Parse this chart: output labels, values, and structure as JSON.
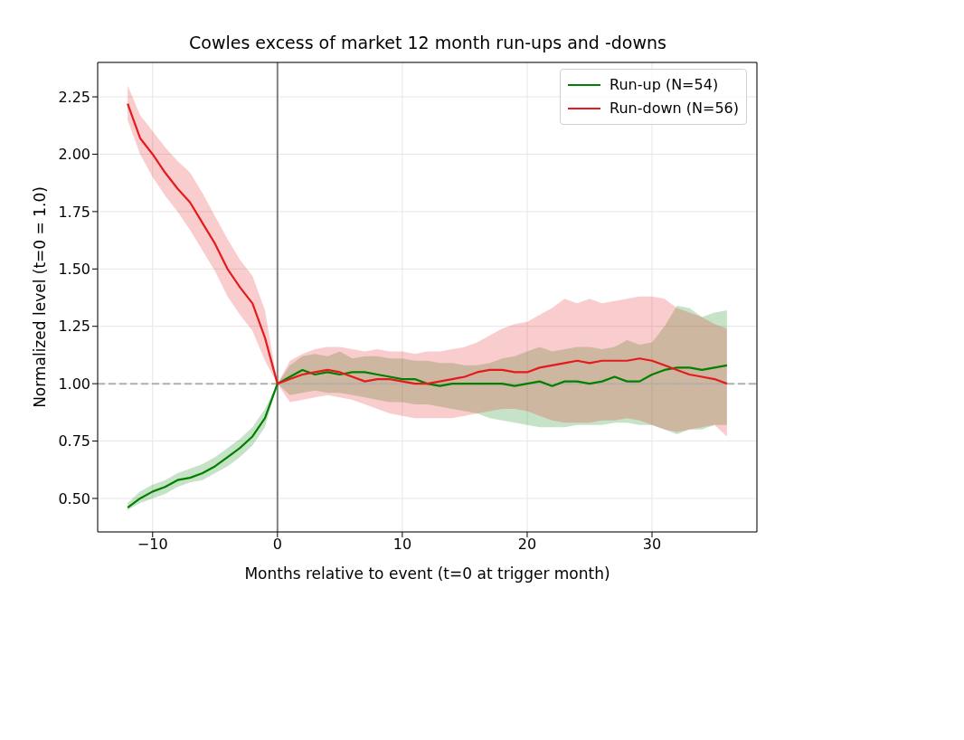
{
  "chart_data": {
    "type": "line",
    "title": "Cowles excess of market 12 month run-ups and -downs",
    "xlabel": "Months relative to event (t=0 at trigger month)",
    "ylabel": "Normalized level (t=0 = 1.0)",
    "x": [
      -12,
      -11,
      -10,
      -9,
      -8,
      -7,
      -6,
      -5,
      -4,
      -3,
      -2,
      -1,
      0,
      1,
      2,
      3,
      4,
      5,
      6,
      7,
      8,
      9,
      10,
      11,
      12,
      13,
      14,
      15,
      16,
      17,
      18,
      19,
      20,
      21,
      22,
      23,
      24,
      25,
      26,
      27,
      28,
      29,
      30,
      31,
      32,
      33,
      34,
      35,
      36
    ],
    "series": [
      {
        "name": "Run-up (N=54)",
        "color": "#008000",
        "values": [
          0.46,
          0.5,
          0.53,
          0.55,
          0.58,
          0.59,
          0.61,
          0.64,
          0.68,
          0.72,
          0.77,
          0.85,
          1.0,
          1.03,
          1.06,
          1.04,
          1.05,
          1.04,
          1.05,
          1.05,
          1.04,
          1.03,
          1.02,
          1.02,
          1.0,
          0.99,
          1.0,
          1.0,
          1.0,
          1.0,
          1.0,
          0.99,
          1.0,
          1.01,
          0.99,
          1.01,
          1.01,
          1.0,
          1.01,
          1.03,
          1.01,
          1.01,
          1.04,
          1.06,
          1.07,
          1.07,
          1.06,
          1.07,
          1.08
        ],
        "upper": [
          0.48,
          0.53,
          0.56,
          0.58,
          0.61,
          0.63,
          0.65,
          0.68,
          0.72,
          0.76,
          0.81,
          0.89,
          1.0,
          1.08,
          1.12,
          1.13,
          1.12,
          1.14,
          1.11,
          1.12,
          1.12,
          1.11,
          1.11,
          1.1,
          1.1,
          1.09,
          1.09,
          1.08,
          1.08,
          1.09,
          1.11,
          1.12,
          1.14,
          1.16,
          1.14,
          1.15,
          1.16,
          1.16,
          1.15,
          1.16,
          1.19,
          1.17,
          1.18,
          1.25,
          1.34,
          1.33,
          1.29,
          1.31,
          1.32
        ],
        "lower": [
          0.45,
          0.48,
          0.5,
          0.52,
          0.55,
          0.57,
          0.58,
          0.61,
          0.64,
          0.68,
          0.73,
          0.81,
          1.0,
          0.95,
          0.96,
          0.97,
          0.96,
          0.96,
          0.95,
          0.94,
          0.93,
          0.92,
          0.92,
          0.91,
          0.91,
          0.9,
          0.89,
          0.88,
          0.87,
          0.85,
          0.84,
          0.83,
          0.82,
          0.81,
          0.81,
          0.81,
          0.82,
          0.82,
          0.82,
          0.83,
          0.83,
          0.82,
          0.82,
          0.8,
          0.78,
          0.8,
          0.8,
          0.82,
          0.82
        ]
      },
      {
        "name": "Run-down (N=56)",
        "color": "#e41a1c",
        "values": [
          2.22,
          2.07,
          2.0,
          1.92,
          1.85,
          1.79,
          1.7,
          1.61,
          1.5,
          1.42,
          1.35,
          1.2,
          1.0,
          1.02,
          1.04,
          1.05,
          1.06,
          1.05,
          1.03,
          1.01,
          1.02,
          1.02,
          1.01,
          1.0,
          1.0,
          1.01,
          1.02,
          1.03,
          1.05,
          1.06,
          1.06,
          1.05,
          1.05,
          1.07,
          1.08,
          1.09,
          1.1,
          1.09,
          1.1,
          1.1,
          1.1,
          1.11,
          1.1,
          1.08,
          1.06,
          1.04,
          1.03,
          1.02,
          1.0
        ],
        "upper": [
          2.3,
          2.17,
          2.1,
          2.03,
          1.97,
          1.92,
          1.83,
          1.73,
          1.63,
          1.54,
          1.47,
          1.32,
          1.0,
          1.1,
          1.13,
          1.15,
          1.16,
          1.16,
          1.15,
          1.14,
          1.15,
          1.14,
          1.14,
          1.13,
          1.14,
          1.14,
          1.15,
          1.16,
          1.18,
          1.21,
          1.24,
          1.26,
          1.27,
          1.3,
          1.33,
          1.37,
          1.35,
          1.37,
          1.35,
          1.36,
          1.37,
          1.38,
          1.38,
          1.37,
          1.33,
          1.31,
          1.29,
          1.26,
          1.24
        ],
        "lower": [
          2.15,
          2.0,
          1.9,
          1.82,
          1.75,
          1.67,
          1.58,
          1.49,
          1.38,
          1.3,
          1.23,
          1.1,
          1.0,
          0.92,
          0.93,
          0.94,
          0.95,
          0.94,
          0.93,
          0.91,
          0.89,
          0.87,
          0.86,
          0.85,
          0.85,
          0.85,
          0.85,
          0.86,
          0.87,
          0.88,
          0.89,
          0.89,
          0.88,
          0.86,
          0.84,
          0.83,
          0.83,
          0.83,
          0.84,
          0.84,
          0.85,
          0.84,
          0.82,
          0.8,
          0.79,
          0.8,
          0.81,
          0.82,
          0.77
        ]
      }
    ],
    "xlim": [
      -14.4,
      38.4
    ],
    "xticks": [
      {
        "value": -10,
        "label": "−10"
      },
      0,
      10,
      20,
      30
    ],
    "ylim": [
      0.354,
      2.4
    ],
    "yticks": [
      {
        "value": 0.5,
        "label": "0.50"
      },
      {
        "value": 0.75,
        "label": "0.75"
      },
      {
        "value": 1.0,
        "label": "1.00"
      },
      {
        "value": 1.25,
        "label": "1.25"
      },
      {
        "value": 1.5,
        "label": "1.50"
      },
      {
        "value": 1.75,
        "label": "1.75"
      },
      {
        "value": 2.0,
        "label": "2.00"
      },
      {
        "value": 2.25,
        "label": "2.25"
      }
    ],
    "ref_lines": [
      {
        "axis": "y",
        "value": 1.0,
        "color": "#b0b0b0",
        "line_style": "dashed"
      },
      {
        "axis": "x",
        "value": 0,
        "color": "#808080",
        "line_style": "solid"
      }
    ],
    "grid": true,
    "legend": "top right",
    "marker": "none",
    "line_style": "solid"
  }
}
